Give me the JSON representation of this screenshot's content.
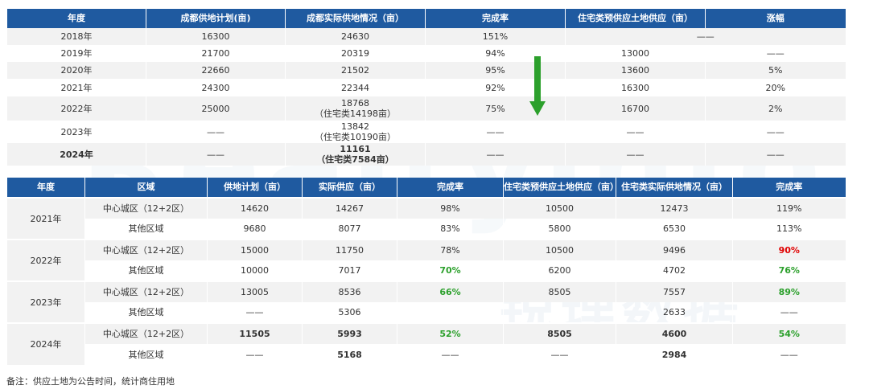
{
  "table1": {
    "headers": [
      "年度",
      "成都供地计划(亩)",
      "成都实际供地情况（亩）",
      "完成率",
      "住宅类预供应土地供应（亩）",
      "涨幅"
    ],
    "rows": [
      {
        "year": "2018年",
        "plan": "16300",
        "actual": "24630",
        "actual_sub": "",
        "rate": "151%",
        "resi": "——",
        "growth": ""
      },
      {
        "year": "2019年",
        "plan": "21700",
        "actual": "20319",
        "actual_sub": "",
        "rate": "94%",
        "resi": "13000",
        "growth": "——"
      },
      {
        "year": "2020年",
        "plan": "22660",
        "actual": "21502",
        "actual_sub": "",
        "rate": "95%",
        "resi": "13600",
        "growth": "5%"
      },
      {
        "year": "2021年",
        "plan": "24300",
        "actual": "22344",
        "actual_sub": "",
        "rate": "92%",
        "resi": "16300",
        "growth": "20%"
      },
      {
        "year": "2022年",
        "plan": "25000",
        "actual": "18768",
        "actual_sub": "（住宅类14198亩）",
        "rate": "75%",
        "resi": "16700",
        "growth": "2%"
      },
      {
        "year": "2023年",
        "plan": "——",
        "actual": "13842",
        "actual_sub": "（住宅类10190亩）",
        "rate": "——",
        "resi": "——",
        "growth": "——"
      },
      {
        "year": "2024年",
        "plan": "——",
        "actual": "11161",
        "actual_sub": "（住宅类7584亩）",
        "rate": "——",
        "resi": "——",
        "growth": "——"
      }
    ]
  },
  "table2": {
    "headers": [
      "年度",
      "区域",
      "供地计划（亩）",
      "实际供应（亩）",
      "完成率",
      "住宅类预供应土地供应（亩）",
      "住宅类实际供地情况（亩）",
      "完成率"
    ],
    "groups": [
      {
        "year": "2021年",
        "rows": [
          {
            "region": "中心城区（12+2区）",
            "plan": "14620",
            "actual": "14267",
            "rate": "98%",
            "resi_pre": "10500",
            "resi_actual": "12473",
            "rate2": "119%"
          },
          {
            "region": "其他区域",
            "plan": "9680",
            "actual": "8077",
            "rate": "83%",
            "resi_pre": "5800",
            "resi_actual": "6530",
            "rate2": "113%"
          }
        ]
      },
      {
        "year": "2022年",
        "rows": [
          {
            "region": "中心城区（12+2区）",
            "plan": "15000",
            "actual": "11750",
            "rate": "78%",
            "resi_pre": "10500",
            "resi_actual": "9496",
            "rate2": "90%"
          },
          {
            "region": "其他区域",
            "plan": "10000",
            "actual": "7017",
            "rate": "70%",
            "resi_pre": "6200",
            "resi_actual": "4702",
            "rate2": "76%"
          }
        ]
      },
      {
        "year": "2023年",
        "rows": [
          {
            "region": "中心城区（12+2区）",
            "plan": "13005",
            "actual": "8536",
            "rate": "66%",
            "resi_pre": "8505",
            "resi_actual": "7557",
            "rate2": "89%"
          },
          {
            "region": "其他区域",
            "plan": "——",
            "actual": "5306",
            "rate": "",
            "resi_pre": "",
            "resi_actual": "2633",
            "rate2": "——"
          }
        ]
      },
      {
        "year": "2024年",
        "rows": [
          {
            "region": "中心城区（12+2区）",
            "plan": "11505",
            "actual": "5993",
            "rate": "52%",
            "resi_pre": "8505",
            "resi_actual": "4600",
            "rate2": "54%"
          },
          {
            "region": "其他区域",
            "plan": "——",
            "actual": "5168",
            "rate": "——",
            "resi_pre": "——",
            "resi_actual": "2984",
            "rate2": "——"
          }
        ]
      }
    ]
  },
  "note": "备注：供应土地为公告时间，统计商住用地",
  "watermark": "Realtyinfo",
  "watermark_cn": "锐理数据",
  "colors": {
    "header_bg": "#1f5aa0",
    "green": "#2ca02c",
    "red": "#e00000",
    "arrow": "#2ca02c"
  }
}
